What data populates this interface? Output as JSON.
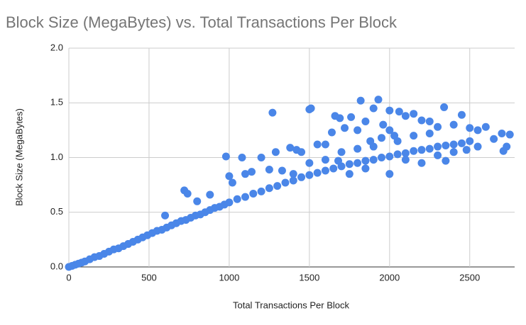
{
  "chart_data": {
    "type": "scatter",
    "title": "Block Size (MegaBytes) vs. Total Transactions Per Block",
    "x_label": "Total Transactions Per Block",
    "y_label": "Block Size (MegaBytes)",
    "color": "#4a86e8",
    "grid": true,
    "xlim": [
      0,
      2780
    ],
    "xticks": [
      0,
      500,
      1000,
      1500,
      2000,
      2500
    ],
    "ylim": [
      0,
      2
    ],
    "yticks": [
      {
        "value": 0,
        "label": "0.0"
      },
      0.5,
      {
        "value": 1,
        "label": "1.0"
      },
      1.5,
      {
        "value": 2,
        "label": "2.0"
      }
    ],
    "x": [
      0,
      20,
      40,
      60,
      80,
      100,
      130,
      160,
      190,
      220,
      250,
      280,
      310,
      340,
      370,
      400,
      430,
      460,
      490,
      520,
      550,
      580,
      610,
      640,
      670,
      700,
      730,
      760,
      790,
      820,
      850,
      880,
      910,
      940,
      970,
      1000,
      1050,
      1100,
      1150,
      1200,
      1250,
      1300,
      1350,
      1400,
      1450,
      1500,
      1550,
      1600,
      1650,
      1700,
      1750,
      1800,
      1850,
      1900,
      1950,
      2000,
      2050,
      2100,
      2150,
      2200,
      2250,
      2300,
      2350,
      2400,
      2450,
      2500,
      600,
      720,
      740,
      800,
      880,
      980,
      1000,
      1020,
      1080,
      1100,
      1140,
      1200,
      1250,
      1270,
      1290,
      1330,
      1380,
      1420,
      1450,
      1500,
      1510,
      1550,
      1600,
      1640,
      1660,
      1690,
      1720,
      1760,
      1800,
      1820,
      1850,
      1880,
      1900,
      1930,
      1960,
      2000,
      2030,
      2060,
      2100,
      2150,
      2200,
      2250,
      2300,
      2340,
      2400,
      2450,
      2500,
      2550,
      2600,
      2650,
      2700,
      2730,
      2750,
      2710,
      2480,
      2350,
      2000,
      1850,
      1750,
      1680,
      2100,
      2200,
      2300,
      1900,
      2050,
      2150,
      2250,
      2400,
      2550,
      1600,
      1500,
      1400,
      1700,
      1800,
      2000,
      1950
    ],
    "y": [
      0,
      0.01,
      0.02,
      0.03,
      0.04,
      0.05,
      0.07,
      0.09,
      0.1,
      0.12,
      0.14,
      0.16,
      0.17,
      0.19,
      0.21,
      0.23,
      0.25,
      0.27,
      0.29,
      0.31,
      0.33,
      0.34,
      0.36,
      0.38,
      0.4,
      0.42,
      0.43,
      0.45,
      0.47,
      0.48,
      0.5,
      0.52,
      0.54,
      0.55,
      0.57,
      0.59,
      0.62,
      0.64,
      0.67,
      0.69,
      0.72,
      0.74,
      0.77,
      0.79,
      0.82,
      0.84,
      0.86,
      0.88,
      0.9,
      0.92,
      0.94,
      0.95,
      0.97,
      0.98,
      1.0,
      1.01,
      1.03,
      1.04,
      1.06,
      1.07,
      1.08,
      1.1,
      1.11,
      1.12,
      1.13,
      1.15,
      0.47,
      0.7,
      0.67,
      0.6,
      0.66,
      1.01,
      0.83,
      0.77,
      1.0,
      0.85,
      0.87,
      1.0,
      0.89,
      1.41,
      1.05,
      0.88,
      1.09,
      1.07,
      1.05,
      1.44,
      1.45,
      1.12,
      1.12,
      1.23,
      1.38,
      1.36,
      1.27,
      1.37,
      1.25,
      1.52,
      1.33,
      1.15,
      1.45,
      1.53,
      1.3,
      1.43,
      1.2,
      1.42,
      1.38,
      1.4,
      1.34,
      1.33,
      1.28,
      1.46,
      1.3,
      1.39,
      1.27,
      1.25,
      1.28,
      1.17,
      1.22,
      1.1,
      1.21,
      1.06,
      1.07,
      0.97,
      0.85,
      0.9,
      0.85,
      0.97,
      0.98,
      0.95,
      1.02,
      1.1,
      1.15,
      1.2,
      1.22,
      1.05,
      1.1,
      0.98,
      0.95,
      0.85,
      1.05,
      1.08,
      1.25,
      1.18
    ]
  }
}
